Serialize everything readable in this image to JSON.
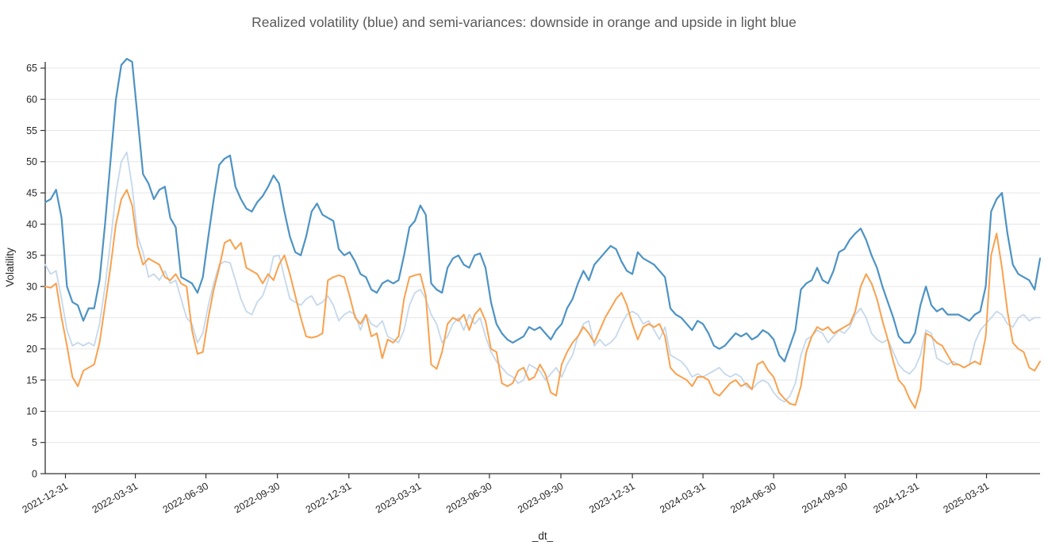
{
  "page": {
    "background": "#ffffff"
  },
  "chart_data": {
    "type": "line",
    "title": "Realized volatility (blue) and semi-variances: downside in orange and upside in light blue",
    "xlabel": "_dt_",
    "ylabel": "Volatility",
    "ylim": [
      0,
      66
    ],
    "y_ticks": [
      0,
      5,
      10,
      15,
      20,
      25,
      30,
      35,
      40,
      45,
      50,
      55,
      60,
      65
    ],
    "grid": "horizontal",
    "legend_position": "none",
    "x_start_date": "2021-12-05",
    "x_step_days": 7,
    "x_tick_labels": [
      "2021-12-31",
      "2022-03-31",
      "2022-06-30",
      "2022-09-30",
      "2022-12-31",
      "2023-03-31",
      "2023-06-30",
      "2023-09-30",
      "2023-12-31",
      "2024-03-31",
      "2024-06-30",
      "2024-09-30",
      "2024-12-31",
      "2025-03-31"
    ],
    "colors": {
      "realized_volatility": "#4D93C4",
      "downside_semivariance": "#F9A14E",
      "upside_semivariance": "#C5D8EB",
      "grid": "#E6E6E6",
      "axis": "#333333",
      "tick_text": "#262626",
      "title_text": "#595959"
    },
    "series": [
      {
        "name": "realized_volatility",
        "color": "#4D93C4",
        "values": [
          43.5,
          44.0,
          45.5,
          41.0,
          30.0,
          27.5,
          27.0,
          24.5,
          26.5,
          26.5,
          31.0,
          40.0,
          50.0,
          60.0,
          65.5,
          66.5,
          66.0,
          57.0,
          48.0,
          46.5,
          44.0,
          45.5,
          46.0,
          41.0,
          39.5,
          31.5,
          31.0,
          30.5,
          29.0,
          31.5,
          38.0,
          44.0,
          49.5,
          50.5,
          51.0,
          46.0,
          44.0,
          42.5,
          42.0,
          43.5,
          44.5,
          46.0,
          47.8,
          46.5,
          42.0,
          38.0,
          35.5,
          35.0,
          38.0,
          42.0,
          43.3,
          41.5,
          41.0,
          40.5,
          36.0,
          35.0,
          35.5,
          34.0,
          32.0,
          31.5,
          29.5,
          29.0,
          30.5,
          31.0,
          30.5,
          31.0,
          35.0,
          39.5,
          40.5,
          43.0,
          41.5,
          30.5,
          29.5,
          29.0,
          33.0,
          34.5,
          35.0,
          33.5,
          33.0,
          35.0,
          35.3,
          33.0,
          27.5,
          24.0,
          22.5,
          21.5,
          21.0,
          21.5,
          22.0,
          23.5,
          23.0,
          23.5,
          22.5,
          21.5,
          23.0,
          24.0,
          26.5,
          28.0,
          30.5,
          32.5,
          31.0,
          33.5,
          34.5,
          35.5,
          36.5,
          36.0,
          34.0,
          32.5,
          32.0,
          35.5,
          34.5,
          34.0,
          33.5,
          32.5,
          31.5,
          26.5,
          25.5,
          25.0,
          24.0,
          23.0,
          24.5,
          24.0,
          22.5,
          20.5,
          20.0,
          20.5,
          21.5,
          22.5,
          22.0,
          22.5,
          21.5,
          22.0,
          23.0,
          22.5,
          21.5,
          19.0,
          18.0,
          20.5,
          23.0,
          29.5,
          30.5,
          31.0,
          33.0,
          31.0,
          30.5,
          32.5,
          35.5,
          36.0,
          37.5,
          38.5,
          39.3,
          37.5,
          35.0,
          33.0,
          30.0,
          27.5,
          25.0,
          22.0,
          21.0,
          21.0,
          22.5,
          27.0,
          30.0,
          27.0,
          26.0,
          26.5,
          25.5,
          25.5,
          25.5,
          25.0,
          24.5,
          25.5,
          26.0,
          30.0,
          42.0,
          44.0,
          45.0,
          38.5,
          33.5,
          32.0,
          31.5,
          31.0,
          29.5,
          34.5
        ]
      },
      {
        "name": "downside_semivariance",
        "color": "#F9A14E",
        "values": [
          30.0,
          29.8,
          30.5,
          25.0,
          20.5,
          15.5,
          14.0,
          16.5,
          17.0,
          17.5,
          21.0,
          27.0,
          33.0,
          40.0,
          44.0,
          45.5,
          43.0,
          36.5,
          33.5,
          34.5,
          34.0,
          33.5,
          31.5,
          31.0,
          32.0,
          30.5,
          30.0,
          23.0,
          19.2,
          19.5,
          25.0,
          29.5,
          33.0,
          37.0,
          37.5,
          36.0,
          37.0,
          33.0,
          32.5,
          32.0,
          30.5,
          32.0,
          31.0,
          33.5,
          35.0,
          32.0,
          28.5,
          25.0,
          22.0,
          21.8,
          22.0,
          22.5,
          31.0,
          31.5,
          31.8,
          31.5,
          28.5,
          25.0,
          24.0,
          25.5,
          22.0,
          22.5,
          18.5,
          21.5,
          21.0,
          22.0,
          28.0,
          31.5,
          31.8,
          32.0,
          28.5,
          17.5,
          16.8,
          19.5,
          24.0,
          25.0,
          24.5,
          25.5,
          23.0,
          25.5,
          26.5,
          24.5,
          20.0,
          19.5,
          14.5,
          14.0,
          14.5,
          16.5,
          17.0,
          15.0,
          15.5,
          17.5,
          16.0,
          13.0,
          12.5,
          17.5,
          19.5,
          21.0,
          22.0,
          23.5,
          22.5,
          21.0,
          23.0,
          25.0,
          26.5,
          28.0,
          29.0,
          27.0,
          24.0,
          21.5,
          23.5,
          24.0,
          23.5,
          24.0,
          22.0,
          17.0,
          16.0,
          15.5,
          15.0,
          14.0,
          15.5,
          15.5,
          15.0,
          13.0,
          12.5,
          13.5,
          14.5,
          15.0,
          14.0,
          14.5,
          13.5,
          17.5,
          18.0,
          16.5,
          15.5,
          13.0,
          12.0,
          11.2,
          11.0,
          14.0,
          19.5,
          22.0,
          23.5,
          23.0,
          23.5,
          22.5,
          23.0,
          23.5,
          24.0,
          26.0,
          30.0,
          32.0,
          30.5,
          28.0,
          24.5,
          21.5,
          18.0,
          15.0,
          14.0,
          12.0,
          10.5,
          13.5,
          22.5,
          22.0,
          21.0,
          20.5,
          19.0,
          17.5,
          17.5,
          17.0,
          17.5,
          18.0,
          17.5,
          22.0,
          35.0,
          38.5,
          33.0,
          26.0,
          21.0,
          20.0,
          19.5,
          17.0,
          16.5,
          18.0
        ]
      },
      {
        "name": "upside_semivariance",
        "color": "#C5D8EB",
        "values": [
          33.5,
          32.0,
          32.5,
          28.0,
          23.0,
          20.5,
          21.0,
          20.5,
          21.0,
          20.5,
          24.0,
          30.0,
          37.0,
          45.0,
          50.0,
          51.5,
          46.0,
          38.0,
          35.5,
          31.5,
          32.0,
          31.0,
          32.5,
          30.5,
          31.0,
          28.0,
          25.0,
          24.0,
          21.0,
          22.5,
          27.0,
          30.5,
          33.5,
          34.0,
          33.8,
          31.0,
          28.0,
          26.0,
          25.5,
          27.5,
          28.5,
          31.0,
          34.8,
          35.0,
          31.5,
          28.0,
          27.5,
          27.0,
          28.0,
          28.5,
          27.0,
          27.5,
          28.5,
          27.0,
          24.5,
          25.5,
          26.0,
          25.5,
          23.0,
          25.5,
          24.0,
          23.5,
          24.5,
          22.0,
          21.5,
          21.0,
          23.0,
          27.0,
          29.0,
          29.5,
          28.0,
          25.5,
          24.0,
          21.0,
          22.0,
          24.0,
          25.0,
          23.0,
          25.5,
          24.0,
          25.0,
          22.0,
          19.5,
          18.0,
          17.0,
          16.0,
          15.5,
          14.5,
          15.0,
          17.5,
          17.0,
          16.5,
          15.0,
          16.0,
          17.0,
          15.5,
          17.5,
          19.0,
          22.0,
          24.0,
          24.5,
          20.5,
          21.5,
          20.5,
          21.0,
          22.0,
          24.0,
          25.5,
          26.0,
          25.5,
          24.0,
          24.5,
          23.0,
          21.5,
          23.5,
          19.0,
          18.5,
          18.0,
          17.0,
          15.5,
          16.0,
          15.5,
          16.0,
          16.5,
          17.0,
          16.0,
          15.5,
          16.0,
          15.5,
          14.0,
          13.5,
          14.5,
          15.0,
          14.5,
          13.0,
          12.0,
          11.5,
          12.5,
          14.5,
          19.0,
          21.5,
          22.0,
          23.0,
          22.5,
          21.0,
          22.0,
          23.0,
          22.5,
          23.5,
          25.5,
          26.5,
          25.0,
          22.5,
          21.5,
          21.0,
          21.5,
          19.5,
          17.5,
          16.5,
          16.0,
          17.0,
          19.0,
          23.0,
          22.5,
          18.5,
          18.0,
          17.5,
          18.0,
          17.5,
          17.0,
          17.5,
          21.0,
          23.0,
          24.0,
          25.0,
          26.0,
          25.5,
          24.0,
          23.5,
          25.0,
          25.5,
          24.5,
          25.0,
          25.0
        ]
      }
    ]
  }
}
